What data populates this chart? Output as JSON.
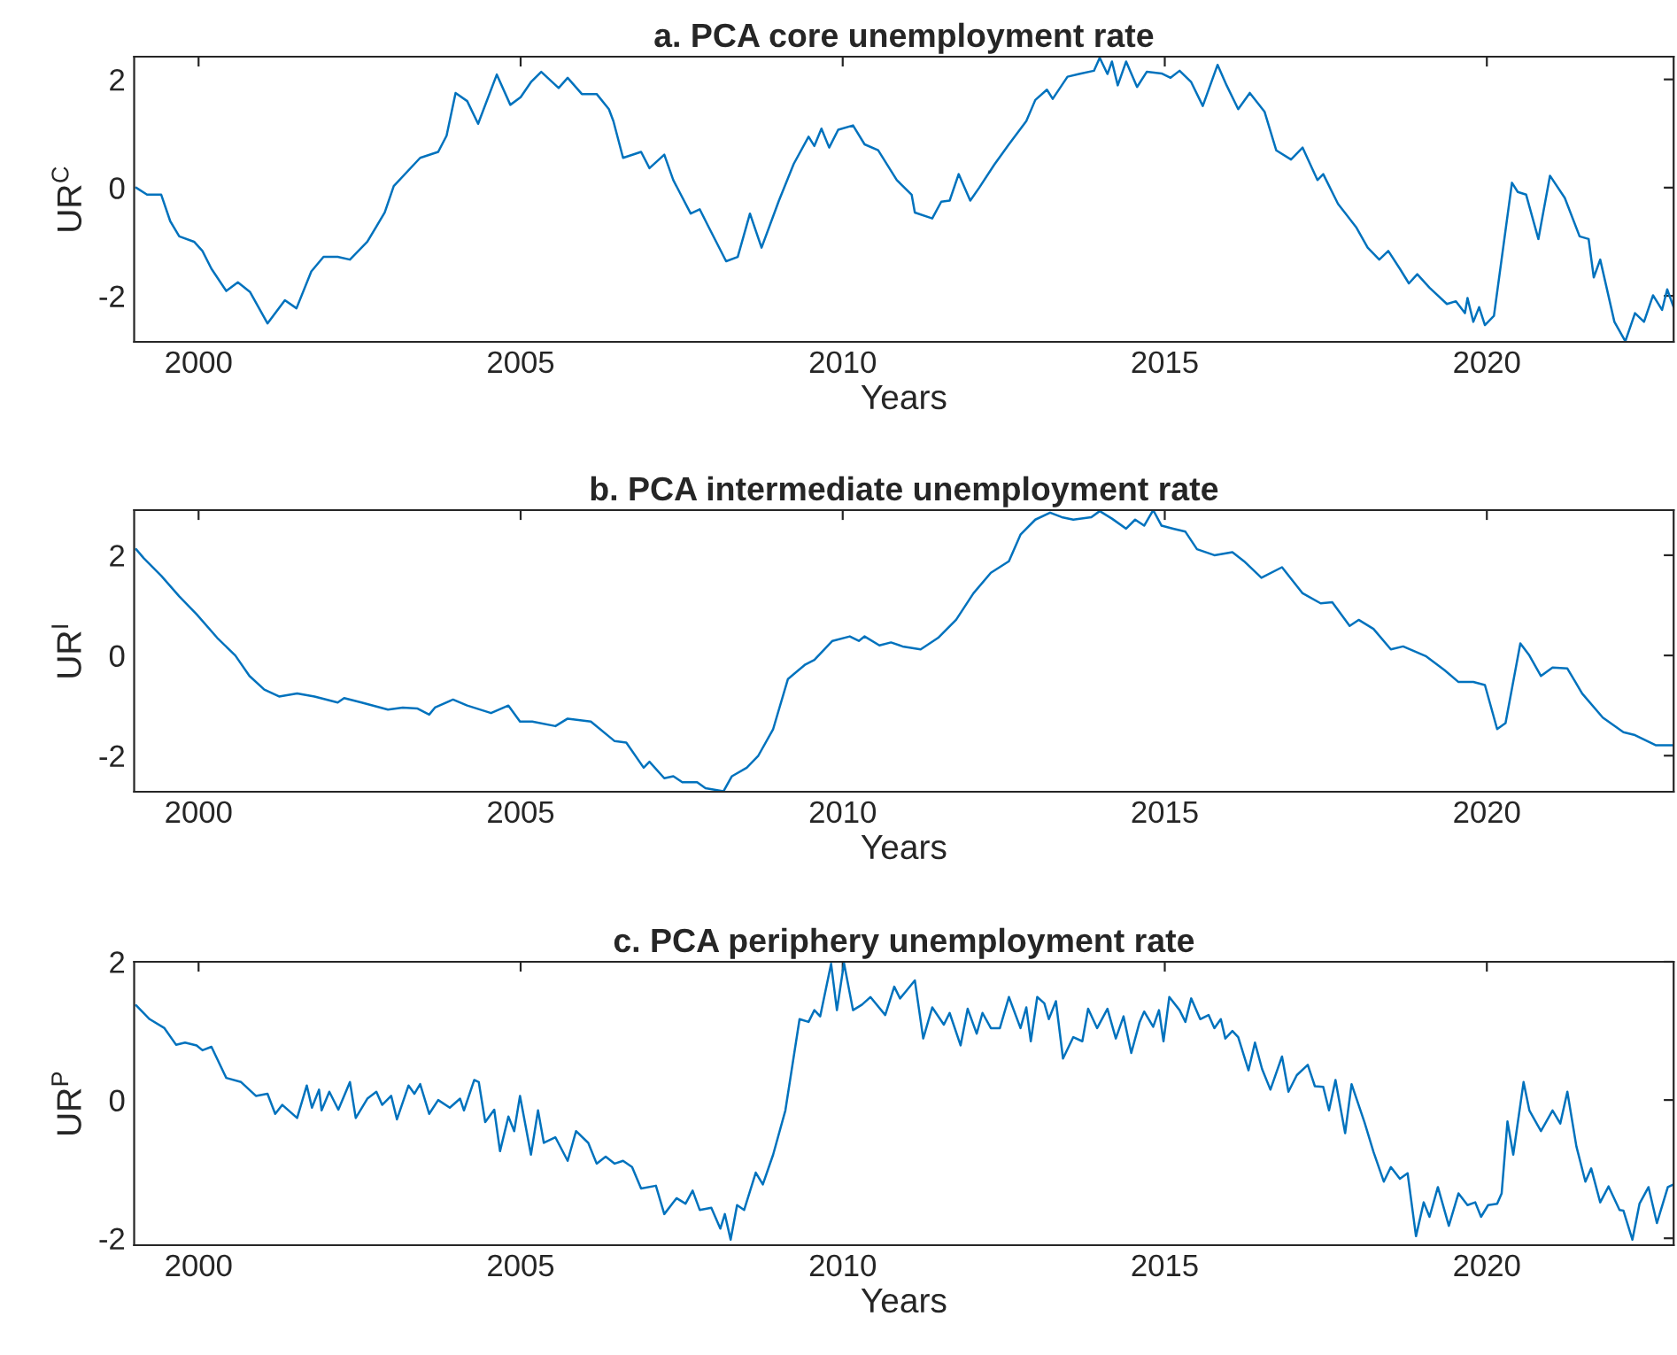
{
  "chart_data": [
    {
      "type": "line",
      "title": "a. PCA core unemployment rate",
      "xlabel": "Years",
      "ylabel": "UR$^{C}$",
      "xlim": [
        1999,
        2022.9
      ],
      "xticks": [
        2000,
        2005,
        2010,
        2015,
        2020
      ],
      "ylim": [
        -2.85,
        2.42
      ],
      "yticks": [
        -2,
        0,
        2
      ],
      "grid": false,
      "legend": false,
      "series": [
        {
          "color": "#0072bd",
          "x": [
            1999.03,
            1999.2,
            1999.42,
            1999.56,
            1999.7,
            1999.93,
            2000.06,
            2000.2,
            2000.43,
            2000.61,
            2000.8,
            2001.07,
            2001.34,
            2001.52,
            2001.75,
            2001.94,
            2002.16,
            2002.35,
            2002.62,
            2002.89,
            2003.03,
            2003.44,
            2003.72,
            2003.85,
            2003.99,
            2004.17,
            2004.34,
            2004.63,
            2004.84,
            2005.0,
            2005.16,
            2005.32,
            2005.59,
            2005.73,
            2005.95,
            2006.18,
            2006.37,
            2006.44,
            2006.59,
            2006.87,
            2007.0,
            2007.23,
            2007.37,
            2007.64,
            2007.78,
            2007.92,
            2008.19,
            2008.37,
            2008.56,
            2008.74,
            2009.01,
            2009.24,
            2009.47,
            2009.56,
            2009.67,
            2009.79,
            2009.93,
            2010.16,
            2010.34,
            2010.55,
            2010.84,
            2011.07,
            2011.12,
            2011.39,
            2011.53,
            2011.66,
            2011.8,
            2011.98,
            2012.12,
            2012.35,
            2012.58,
            2012.85,
            2012.99,
            2013.17,
            2013.26,
            2013.49,
            2013.67,
            2013.9,
            2013.99,
            2014.11,
            2014.18,
            2014.27,
            2014.4,
            2014.57,
            2014.72,
            2014.95,
            2015.09,
            2015.23,
            2015.41,
            2015.59,
            2015.82,
            2015.96,
            2016.14,
            2016.32,
            2016.55,
            2016.73,
            2016.96,
            2017.14,
            2017.37,
            2017.46,
            2017.69,
            2017.97,
            2018.15,
            2018.33,
            2018.47,
            2018.65,
            2018.79,
            2018.92,
            2019.11,
            2019.38,
            2019.52,
            2019.66,
            2019.7,
            2019.79,
            2019.88,
            2019.97,
            2020.11,
            2020.39,
            2020.48,
            2020.61,
            2020.8,
            2020.98,
            2021.21,
            2021.44,
            2021.58,
            2021.66,
            2021.76,
            2021.98,
            2022.15,
            2022.3,
            2022.44,
            2022.58,
            2022.72,
            2022.8,
            2022.9
          ],
          "values": [
            0.0,
            -0.13,
            -0.13,
            -0.62,
            -0.9,
            -1.0,
            -1.17,
            -1.5,
            -1.91,
            -1.75,
            -1.93,
            -2.51,
            -2.08,
            -2.23,
            -1.55,
            -1.28,
            -1.28,
            -1.33,
            -1.0,
            -0.46,
            0.03,
            0.55,
            0.66,
            0.96,
            1.75,
            1.6,
            1.18,
            2.09,
            1.53,
            1.67,
            1.95,
            2.14,
            1.84,
            2.03,
            1.73,
            1.73,
            1.45,
            1.23,
            0.55,
            0.66,
            0.36,
            0.61,
            0.14,
            -0.48,
            -0.4,
            -0.73,
            -1.36,
            -1.28,
            -0.48,
            -1.11,
            -0.24,
            0.44,
            0.94,
            0.77,
            1.09,
            0.74,
            1.07,
            1.15,
            0.8,
            0.69,
            0.14,
            -0.13,
            -0.46,
            -0.57,
            -0.26,
            -0.24,
            0.25,
            -0.24,
            0.0,
            0.42,
            0.8,
            1.23,
            1.62,
            1.81,
            1.64,
            2.05,
            2.1,
            2.16,
            2.4,
            2.1,
            2.33,
            1.89,
            2.33,
            1.86,
            2.14,
            2.11,
            2.03,
            2.16,
            1.95,
            1.51,
            2.27,
            1.89,
            1.45,
            1.75,
            1.4,
            0.69,
            0.52,
            0.74,
            0.14,
            0.25,
            -0.3,
            -0.73,
            -1.11,
            -1.33,
            -1.17,
            -1.5,
            -1.77,
            -1.6,
            -1.85,
            -2.15,
            -2.1,
            -2.32,
            -2.04,
            -2.48,
            -2.21,
            -2.54,
            -2.37,
            0.09,
            -0.08,
            -0.13,
            -0.95,
            0.22,
            -0.19,
            -0.9,
            -0.95,
            -1.66,
            -1.33,
            -2.48,
            -2.84,
            -2.32,
            -2.48,
            -1.99,
            -2.26,
            -1.88,
            -2.21
          ]
        }
      ]
    },
    {
      "type": "line",
      "title": "b. PCA intermediate unemployment rate",
      "xlabel": "Years",
      "ylabel": "UR$^{I}$",
      "xlim": [
        1999,
        2022.9
      ],
      "xticks": [
        2000,
        2005,
        2010,
        2015,
        2020
      ],
      "ylim": [
        -2.72,
        2.9
      ],
      "yticks": [
        -2,
        0,
        2
      ],
      "grid": false,
      "legend": false,
      "series": [
        {
          "color": "#0072bd",
          "x": [
            1999.03,
            1999.15,
            1999.42,
            1999.7,
            1999.97,
            2000.29,
            2000.57,
            2000.79,
            2001.02,
            2001.25,
            2001.53,
            2001.8,
            2002.16,
            2002.26,
            2002.53,
            2002.94,
            2003.17,
            2003.4,
            2003.58,
            2003.67,
            2003.95,
            2004.17,
            2004.54,
            2004.81,
            2004.99,
            2005.18,
            2005.54,
            2005.73,
            2006.09,
            2006.46,
            2006.64,
            2006.91,
            2007.0,
            2007.23,
            2007.37,
            2007.51,
            2007.74,
            2007.87,
            2008.15,
            2008.28,
            2008.51,
            2008.69,
            2008.92,
            2009.15,
            2009.42,
            2009.56,
            2009.84,
            2010.11,
            2010.25,
            2010.34,
            2010.57,
            2010.75,
            2010.93,
            2011.21,
            2011.48,
            2011.76,
            2012.03,
            2012.3,
            2012.58,
            2012.76,
            2012.99,
            2013.22,
            2013.4,
            2013.58,
            2013.86,
            2013.99,
            2014.18,
            2014.4,
            2014.54,
            2014.68,
            2014.82,
            2014.95,
            2015.13,
            2015.32,
            2015.5,
            2015.77,
            2016.05,
            2016.23,
            2016.5,
            2016.82,
            2017.14,
            2017.42,
            2017.6,
            2017.87,
            2018.01,
            2018.24,
            2018.51,
            2018.7,
            2019.06,
            2019.34,
            2019.56,
            2019.79,
            2019.97,
            2020.16,
            2020.29,
            2020.52,
            2020.66,
            2020.84,
            2021.02,
            2021.25,
            2021.48,
            2021.8,
            2022.12,
            2022.3,
            2022.62,
            2022.9
          ],
          "values": [
            2.12,
            1.94,
            1.59,
            1.18,
            0.82,
            0.35,
            0.0,
            -0.41,
            -0.68,
            -0.82,
            -0.76,
            -0.82,
            -0.94,
            -0.85,
            -0.94,
            -1.08,
            -1.04,
            -1.06,
            -1.18,
            -1.04,
            -0.88,
            -1.0,
            -1.15,
            -1.0,
            -1.32,
            -1.32,
            -1.41,
            -1.26,
            -1.32,
            -1.71,
            -1.74,
            -2.24,
            -2.12,
            -2.45,
            -2.41,
            -2.53,
            -2.53,
            -2.65,
            -2.71,
            -2.41,
            -2.24,
            -2.0,
            -1.47,
            -0.47,
            -0.18,
            -0.09,
            0.29,
            0.38,
            0.29,
            0.38,
            0.2,
            0.26,
            0.18,
            0.12,
            0.35,
            0.71,
            1.24,
            1.65,
            1.88,
            2.41,
            2.71,
            2.85,
            2.76,
            2.71,
            2.76,
            2.88,
            2.73,
            2.53,
            2.71,
            2.59,
            2.9,
            2.59,
            2.53,
            2.47,
            2.12,
            2.0,
            2.06,
            1.88,
            1.55,
            1.76,
            1.24,
            1.04,
            1.06,
            0.59,
            0.71,
            0.53,
            0.12,
            0.18,
            -0.02,
            -0.29,
            -0.53,
            -0.53,
            -0.59,
            -1.47,
            -1.35,
            0.24,
            0.0,
            -0.41,
            -0.24,
            -0.26,
            -0.76,
            -1.24,
            -1.53,
            -1.59,
            -1.79,
            -1.79
          ]
        }
      ]
    },
    {
      "type": "line",
      "title": "c. PCA periphery unemployment rate",
      "xlabel": "Years",
      "ylabel": "UR$^{P}$",
      "xlim": [
        1999,
        2022.9
      ],
      "xticks": [
        2000,
        2005,
        2010,
        2015,
        2020
      ],
      "ylim": [
        -2.1,
        2.0
      ],
      "yticks": [
        -2,
        0,
        2
      ],
      "grid": false,
      "legend": false,
      "series": [
        {
          "color": "#0072bd",
          "x": [
            1999.03,
            1999.24,
            1999.47,
            1999.65,
            1999.79,
            1999.97,
            2000.06,
            2000.2,
            2000.43,
            2000.66,
            2000.89,
            2001.07,
            2001.19,
            2001.3,
            2001.53,
            2001.68,
            2001.76,
            2001.87,
            2001.91,
            2002.03,
            2002.17,
            2002.35,
            2002.44,
            2002.62,
            2002.76,
            2002.85,
            2002.99,
            2003.08,
            2003.26,
            2003.35,
            2003.44,
            2003.58,
            2003.72,
            2003.9,
            2004.06,
            2004.12,
            2004.28,
            2004.35,
            2004.45,
            2004.59,
            2004.68,
            2004.81,
            2004.9,
            2004.99,
            2005.16,
            2005.27,
            2005.36,
            2005.54,
            2005.73,
            2005.86,
            2006.05,
            2006.18,
            2006.32,
            2006.46,
            2006.59,
            2006.73,
            2006.87,
            2007.1,
            2007.23,
            2007.42,
            2007.56,
            2007.67,
            2007.78,
            2007.96,
            2008.1,
            2008.17,
            2008.26,
            2008.36,
            2008.47,
            2008.65,
            2008.76,
            2008.92,
            2009.11,
            2009.33,
            2009.47,
            2009.56,
            2009.65,
            2009.82,
            2009.91,
            2010.02,
            2010.16,
            2010.3,
            2010.43,
            2010.66,
            2010.8,
            2010.89,
            2010.98,
            2011.12,
            2011.25,
            2011.39,
            2011.57,
            2011.66,
            2011.83,
            2011.94,
            2012.08,
            2012.17,
            2012.3,
            2012.44,
            2012.58,
            2012.76,
            2012.85,
            2012.92,
            2013.02,
            2013.13,
            2013.2,
            2013.31,
            2013.42,
            2013.58,
            2013.72,
            2013.81,
            2013.95,
            2014.11,
            2014.24,
            2014.36,
            2014.48,
            2014.61,
            2014.68,
            2014.82,
            2014.91,
            2014.98,
            2015.07,
            2015.23,
            2015.32,
            2015.41,
            2015.55,
            2015.68,
            2015.77,
            2015.87,
            2015.94,
            2016.05,
            2016.14,
            2016.3,
            2016.4,
            2016.51,
            2016.64,
            2016.82,
            2016.92,
            2017.05,
            2017.22,
            2017.33,
            2017.46,
            2017.55,
            2017.65,
            2017.8,
            2017.9,
            2018.1,
            2018.24,
            2018.4,
            2018.51,
            2018.65,
            2018.77,
            2018.9,
            2019.02,
            2019.11,
            2019.24,
            2019.41,
            2019.56,
            2019.7,
            2019.82,
            2019.91,
            2020.02,
            2020.16,
            2020.23,
            2020.32,
            2020.41,
            2020.57,
            2020.66,
            2020.84,
            2021.02,
            2021.14,
            2021.25,
            2021.39,
            2021.53,
            2021.62,
            2021.76,
            2021.89,
            2022.06,
            2022.12,
            2022.26,
            2022.37,
            2022.51,
            2022.64,
            2022.81,
            2022.9
          ],
          "values": [
            1.37,
            1.17,
            1.04,
            0.8,
            0.83,
            0.79,
            0.72,
            0.77,
            0.32,
            0.26,
            0.06,
            0.09,
            -0.2,
            -0.07,
            -0.26,
            0.21,
            -0.11,
            0.15,
            -0.15,
            0.12,
            -0.14,
            0.26,
            -0.26,
            0.02,
            0.12,
            -0.07,
            0.06,
            -0.28,
            0.21,
            0.09,
            0.23,
            -0.2,
            0.0,
            -0.11,
            0.02,
            -0.15,
            0.29,
            0.26,
            -0.32,
            -0.14,
            -0.74,
            -0.24,
            -0.45,
            0.06,
            -0.79,
            -0.15,
            -0.62,
            -0.54,
            -0.88,
            -0.45,
            -0.62,
            -0.92,
            -0.82,
            -0.92,
            -0.88,
            -0.97,
            -1.28,
            -1.24,
            -1.65,
            -1.42,
            -1.5,
            -1.31,
            -1.59,
            -1.56,
            -1.86,
            -1.65,
            -2.02,
            -1.52,
            -1.59,
            -1.05,
            -1.22,
            -0.79,
            -0.15,
            1.17,
            1.13,
            1.3,
            1.21,
            1.97,
            1.3,
            1.98,
            1.3,
            1.38,
            1.49,
            1.23,
            1.64,
            1.47,
            1.57,
            1.73,
            0.89,
            1.34,
            1.09,
            1.26,
            0.79,
            1.32,
            0.96,
            1.26,
            1.04,
            1.04,
            1.49,
            1.04,
            1.34,
            0.85,
            1.49,
            1.4,
            1.17,
            1.43,
            0.6,
            0.91,
            0.85,
            1.32,
            1.04,
            1.32,
            0.89,
            1.21,
            0.68,
            1.13,
            1.28,
            1.06,
            1.3,
            0.85,
            1.49,
            1.3,
            1.13,
            1.47,
            1.17,
            1.23,
            1.04,
            1.17,
            0.89,
            1.0,
            0.91,
            0.43,
            0.83,
            0.45,
            0.15,
            0.63,
            0.12,
            0.36,
            0.51,
            0.2,
            0.19,
            -0.15,
            0.29,
            -0.48,
            0.23,
            -0.32,
            -0.75,
            -1.18,
            -0.97,
            -1.14,
            -1.06,
            -1.97,
            -1.48,
            -1.69,
            -1.26,
            -1.82,
            -1.35,
            -1.52,
            -1.48,
            -1.69,
            -1.52,
            -1.5,
            -1.35,
            -0.31,
            -0.79,
            0.26,
            -0.15,
            -0.45,
            -0.15,
            -0.34,
            0.12,
            -0.67,
            -1.18,
            -0.99,
            -1.48,
            -1.25,
            -1.59,
            -1.6,
            -2.02,
            -1.5,
            -1.26,
            -1.78,
            -1.26,
            -1.22
          ]
        }
      ]
    }
  ]
}
